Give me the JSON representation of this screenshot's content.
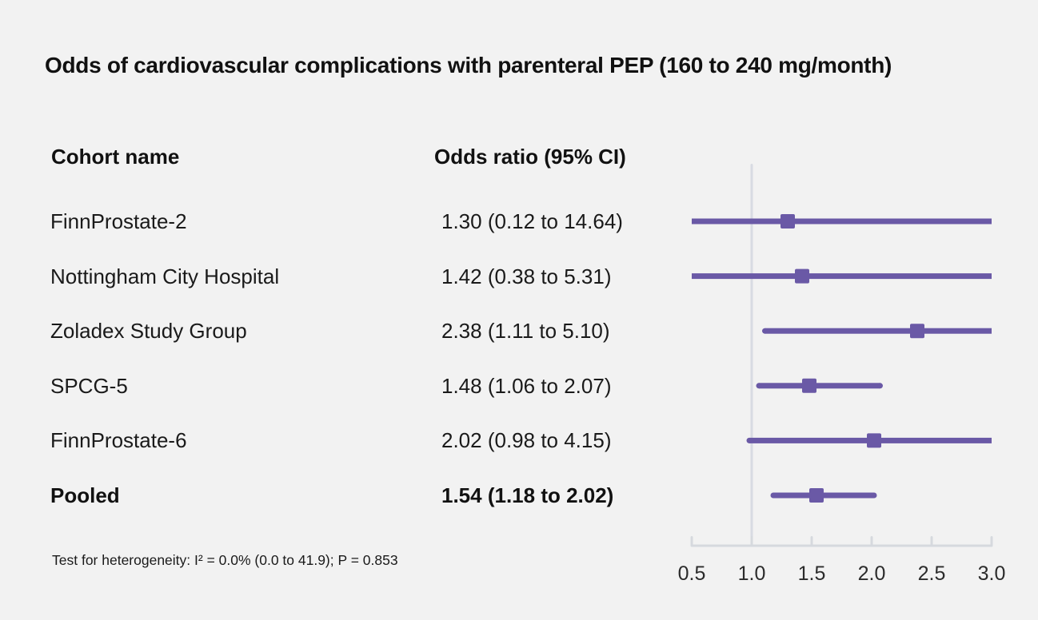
{
  "title": "Odds of cardiovascular complications with parenteral PEP (160 to 240 mg/month)",
  "columns": {
    "cohort": "Cohort name",
    "odds": "Odds ratio (95% CI)"
  },
  "footnote": "Test for heterogeneity: I² = 0.0% (0.0 to 41.9); P = 0.853",
  "colors": {
    "marker": "#6a59a6",
    "ref_line": "#d8dbe3",
    "axis": "#d6d9de",
    "background": "#f2f2f2",
    "text": "#1a1a1a"
  },
  "chart_data": {
    "type": "forest",
    "title": "Odds of cardiovascular complications with parenteral PEP (160 to 240 mg/month)",
    "xlabel": "",
    "ylabel": "",
    "xlim": [
      0.5,
      3.0
    ],
    "ref_value": 1.0,
    "x_ticks": [
      0.5,
      1.0,
      1.5,
      2.0,
      2.5,
      3.0
    ],
    "x_tick_labels": [
      "0.5",
      "1.0",
      "1.5",
      "2.0",
      "2.5",
      "3.0"
    ],
    "grid": false,
    "legend": false,
    "rows": [
      {
        "name": "FinnProstate-2",
        "estimate": 1.3,
        "ci_low": 0.12,
        "ci_high": 14.64,
        "label": "1.30 (0.12 to 14.64)",
        "bold": false
      },
      {
        "name": "Nottingham City Hospital",
        "estimate": 1.42,
        "ci_low": 0.38,
        "ci_high": 5.31,
        "label": "1.42 (0.38 to 5.31)",
        "bold": false
      },
      {
        "name": "Zoladex Study Group",
        "estimate": 2.38,
        "ci_low": 1.11,
        "ci_high": 5.1,
        "label": "2.38 (1.11 to 5.10)",
        "bold": false
      },
      {
        "name": "SPCG-5",
        "estimate": 1.48,
        "ci_low": 1.06,
        "ci_high": 2.07,
        "label": "1.48 (1.06 to 2.07)",
        "bold": false
      },
      {
        "name": "FinnProstate-6",
        "estimate": 2.02,
        "ci_low": 0.98,
        "ci_high": 4.15,
        "label": "2.02 (0.98 to 4.15)",
        "bold": false
      },
      {
        "name": "Pooled",
        "estimate": 1.54,
        "ci_low": 1.18,
        "ci_high": 2.02,
        "label": "1.54 (1.18 to 2.02)",
        "bold": true
      }
    ]
  }
}
